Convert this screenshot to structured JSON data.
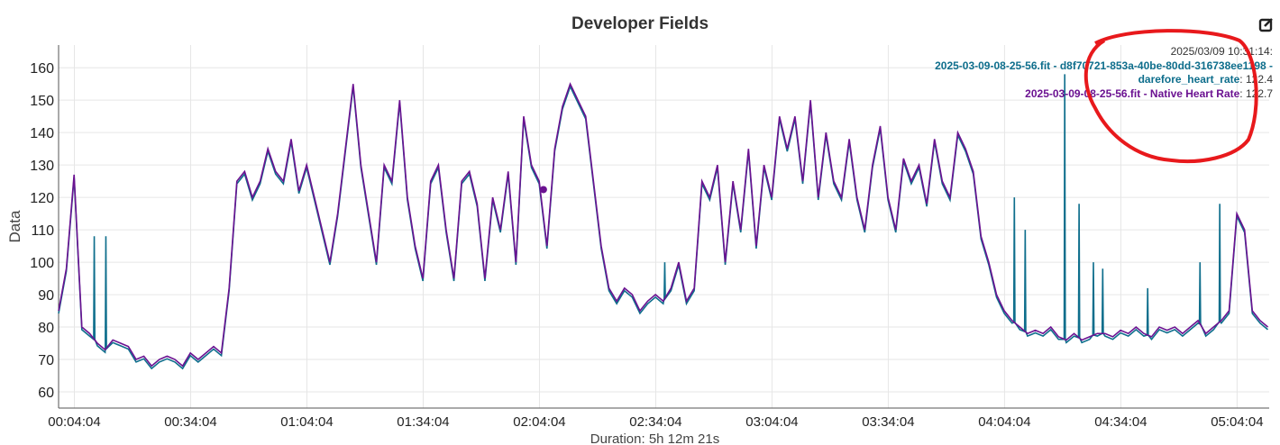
{
  "title": "Developer Fields",
  "edit_icon": "edit-icon",
  "tooltip": {
    "time": "2025/03/09 10:31:14:",
    "series1_label": "2025-03-09-08-25-56.fit - d8f70721-853a-40be-80dd-316738ee1198 -",
    "series1_label2": "darefore_heart_rate",
    "series1_value": "122.4",
    "series2_label": "2025-03-09-08-25-56.fit - Native Heart Rate",
    "series2_value": "122.7",
    "annotation_color": "#e8191c"
  },
  "chart_data": {
    "type": "line",
    "title": "Developer Fields",
    "xlabel": "Duration: 5h 12m 21s",
    "ylabel": "Data",
    "ylim": [
      55,
      167
    ],
    "xlim_minutes": [
      0,
      312.35
    ],
    "yticks": [
      60,
      70,
      80,
      90,
      100,
      110,
      120,
      130,
      140,
      150,
      160
    ],
    "xticks": [
      {
        "t": 4.07,
        "label": "00:04:04"
      },
      {
        "t": 34.07,
        "label": "00:34:04"
      },
      {
        "t": 64.07,
        "label": "01:04:04"
      },
      {
        "t": 94.07,
        "label": "01:34:04"
      },
      {
        "t": 124.07,
        "label": "02:04:04"
      },
      {
        "t": 154.07,
        "label": "02:34:04"
      },
      {
        "t": 184.07,
        "label": "03:04:04"
      },
      {
        "t": 214.07,
        "label": "03:34:04"
      },
      {
        "t": 244.07,
        "label": "04:04:04"
      },
      {
        "t": 274.07,
        "label": "04:34:04"
      },
      {
        "t": 304.07,
        "label": "05:04:04"
      }
    ],
    "grid": true,
    "native_step_minutes": 2,
    "series": [
      {
        "name": "2025-03-09-08-25-56.fit - Native Heart Rate",
        "color": "#6b1291",
        "values": [
          85,
          98,
          127,
          80,
          78,
          75,
          73,
          76,
          75,
          74,
          70,
          71,
          68,
          70,
          71,
          70,
          68,
          72,
          70,
          72,
          74,
          72,
          92,
          125,
          128,
          120,
          125,
          135,
          128,
          125,
          138,
          122,
          130,
          120,
          110,
          100,
          115,
          135,
          155,
          130,
          115,
          100,
          130,
          125,
          150,
          120,
          105,
          95,
          125,
          130,
          110,
          95,
          125,
          128,
          118,
          95,
          120,
          110,
          128,
          100,
          145,
          130,
          125,
          105,
          135,
          148,
          155,
          150,
          145,
          125,
          105,
          92,
          88,
          92,
          90,
          85,
          88,
          90,
          88,
          92,
          100,
          88,
          92,
          125,
          120,
          130,
          100,
          125,
          110,
          135,
          105,
          130,
          120,
          145,
          135,
          145,
          125,
          150,
          120,
          140,
          125,
          120,
          138,
          120,
          110,
          130,
          142,
          120,
          110,
          132,
          125,
          130,
          118,
          138,
          125,
          120,
          140,
          135,
          128,
          108,
          100,
          90,
          85,
          82,
          80,
          78,
          79,
          78,
          80,
          77,
          76,
          78,
          76,
          77,
          78,
          78,
          77,
          79,
          78,
          80,
          78,
          77,
          80,
          79,
          80,
          78,
          80,
          82,
          78,
          80,
          82,
          85,
          115,
          110,
          85,
          82,
          80
        ]
      },
      {
        "name": "2025-03-09-08-25-56.fit - d8f70721-853a-40be-80dd-316738ee1198 - darefore_heart_rate",
        "color": "#0e6e8c",
        "follows_native_except_spikes": [
          {
            "t": 9.2,
            "v": 108
          },
          {
            "t": 12.2,
            "v": 108
          },
          {
            "t": 156.4,
            "v": 100
          },
          {
            "t": 246.6,
            "v": 120
          },
          {
            "t": 249.4,
            "v": 110
          },
          {
            "t": 259.6,
            "v": 158
          },
          {
            "t": 263.3,
            "v": 118
          },
          {
            "t": 267,
            "v": 100
          },
          {
            "t": 269.4,
            "v": 98
          },
          {
            "t": 281,
            "v": 92
          },
          {
            "t": 294.5,
            "v": 100
          },
          {
            "t": 299.6,
            "v": 118
          }
        ]
      }
    ],
    "hover": {
      "t": 125.1,
      "v": 122.4
    }
  }
}
